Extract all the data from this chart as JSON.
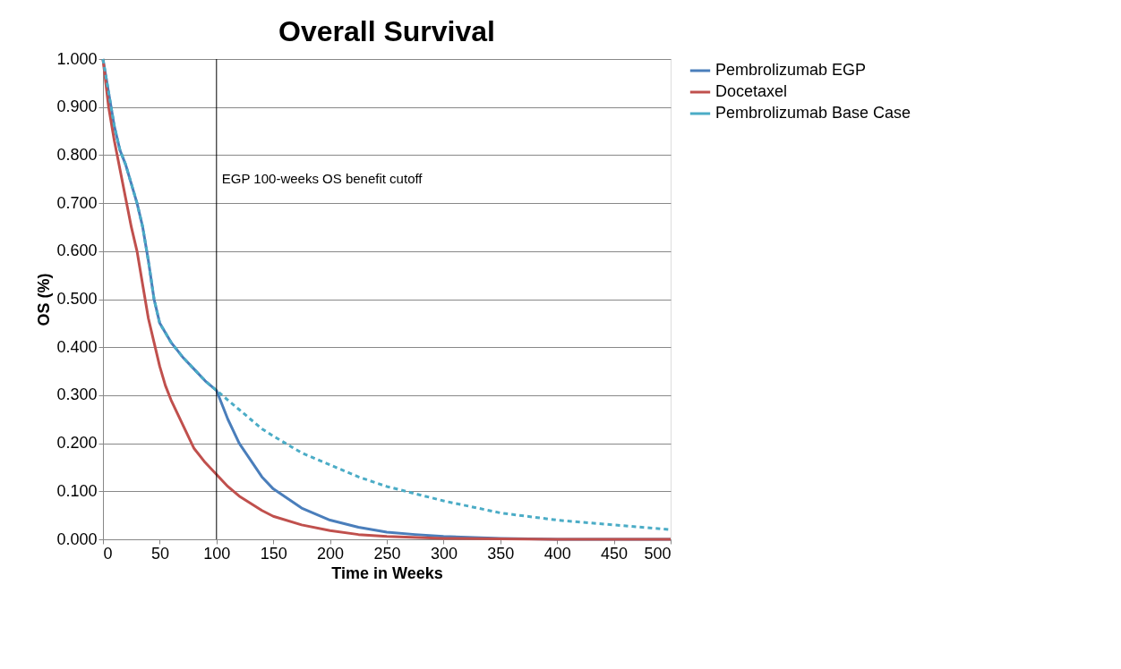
{
  "chart_data": {
    "type": "line",
    "title": "Overall Survival",
    "xlabel": "Time in Weeks",
    "ylabel": "OS (%)",
    "xlim": [
      0,
      500
    ],
    "xticks": [
      0,
      50,
      100,
      150,
      200,
      250,
      300,
      350,
      400,
      450,
      500
    ],
    "ylim": [
      0,
      1
    ],
    "yticks": [
      {
        "value": 0,
        "label": "0.000"
      },
      {
        "value": 0.1,
        "label": "0.100"
      },
      {
        "value": 0.2,
        "label": "0.200"
      },
      {
        "value": 0.3,
        "label": "0.300"
      },
      {
        "value": 0.4,
        "label": "0.400"
      },
      {
        "value": 0.5,
        "label": "0.500"
      },
      {
        "value": 0.6,
        "label": "0.600"
      },
      {
        "value": 0.7,
        "label": "0.700"
      },
      {
        "value": 0.8,
        "label": "0.800"
      },
      {
        "value": 0.9,
        "label": "0.900"
      },
      {
        "value": 1,
        "label": "1.000"
      }
    ],
    "grid": "y",
    "legend": "right",
    "marker": "none",
    "ref_lines": [
      {
        "axis": "x",
        "value": 100,
        "label": "EGP 100-weeks OS benefit cutoff",
        "color": "#000000"
      }
    ],
    "series": [
      {
        "name": "Pembrolizumab EGP",
        "color": "#4a7ebb",
        "line_style": "solid",
        "x": [
          0,
          5,
          10,
          15,
          20,
          25,
          30,
          35,
          40,
          45,
          50,
          55,
          60,
          70,
          80,
          90,
          100,
          110,
          120,
          130,
          140,
          150,
          175,
          200,
          225,
          250,
          275,
          300,
          350,
          400,
          500
        ],
        "values": [
          1.0,
          0.93,
          0.86,
          0.81,
          0.78,
          0.74,
          0.7,
          0.65,
          0.58,
          0.5,
          0.45,
          0.43,
          0.41,
          0.38,
          0.355,
          0.33,
          0.31,
          0.25,
          0.2,
          0.165,
          0.13,
          0.105,
          0.065,
          0.04,
          0.025,
          0.015,
          0.01,
          0.006,
          0.002,
          0.0,
          0.0
        ]
      },
      {
        "name": "Docetaxel",
        "color": "#c0504d",
        "line_style": "solid",
        "x": [
          0,
          5,
          10,
          15,
          20,
          25,
          30,
          35,
          40,
          45,
          50,
          55,
          60,
          70,
          80,
          90,
          100,
          110,
          120,
          130,
          140,
          150,
          175,
          200,
          225,
          250,
          300,
          350,
          400,
          500
        ],
        "values": [
          1.0,
          0.9,
          0.83,
          0.77,
          0.71,
          0.65,
          0.6,
          0.53,
          0.46,
          0.41,
          0.36,
          0.32,
          0.29,
          0.24,
          0.19,
          0.16,
          0.135,
          0.11,
          0.09,
          0.075,
          0.06,
          0.048,
          0.03,
          0.018,
          0.01,
          0.006,
          0.002,
          0.001,
          0.0,
          0.0
        ]
      },
      {
        "name": "Pembrolizumab Base Case",
        "color": "#4bacc6",
        "line_style": "dashed",
        "x": [
          0,
          5,
          10,
          15,
          20,
          25,
          30,
          35,
          40,
          45,
          50,
          55,
          60,
          70,
          80,
          90,
          100,
          110,
          120,
          130,
          140,
          150,
          175,
          200,
          225,
          250,
          275,
          300,
          350,
          400,
          450,
          500
        ],
        "values": [
          1.0,
          0.93,
          0.86,
          0.81,
          0.78,
          0.74,
          0.7,
          0.65,
          0.58,
          0.5,
          0.45,
          0.43,
          0.41,
          0.38,
          0.355,
          0.33,
          0.31,
          0.29,
          0.27,
          0.25,
          0.23,
          0.215,
          0.18,
          0.155,
          0.13,
          0.11,
          0.095,
          0.08,
          0.055,
          0.04,
          0.03,
          0.02
        ]
      }
    ]
  }
}
